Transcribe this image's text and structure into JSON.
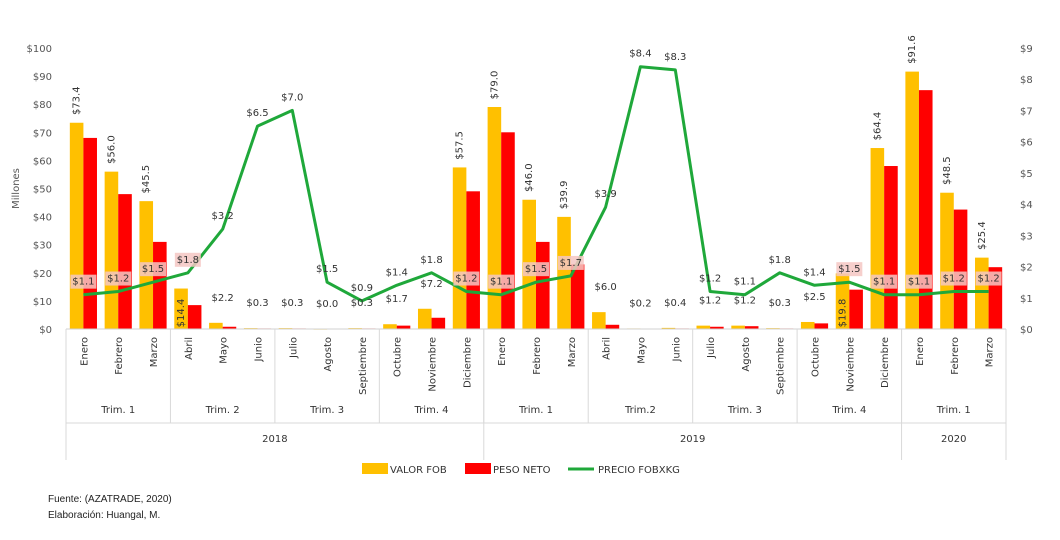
{
  "chart_data": {
    "type": "bar",
    "ylabel": "Millones",
    "ylim": [
      0,
      100
    ],
    "y2lim": [
      0,
      9
    ],
    "y_ticks": [
      "$0",
      "$10",
      "$20",
      "$30",
      "$40",
      "$50",
      "$60",
      "$70",
      "$80",
      "$90",
      "$100"
    ],
    "y2_ticks": [
      "$0",
      "$1",
      "$2",
      "$3",
      "$4",
      "$5",
      "$6",
      "$7",
      "$8",
      "$9"
    ],
    "categories": [
      "Enero",
      "Febrero",
      "Marzo",
      "Abril",
      "Mayo",
      "Junio",
      "Julio",
      "Agosto",
      "Septiembre",
      "Octubre",
      "Noviembre",
      "Diciembre",
      "Enero",
      "Febrero",
      "Marzo",
      "Abril",
      "Mayo",
      "Junio",
      "Julio",
      "Agosto",
      "Septiembre",
      "Octubre",
      "Noviembre",
      "Diciembre",
      "Enero",
      "Febrero",
      "Marzo"
    ],
    "quarters": [
      {
        "label": "Trim. 1",
        "start": 0,
        "end": 2
      },
      {
        "label": "Trim. 2",
        "start": 3,
        "end": 5
      },
      {
        "label": "Trim. 3",
        "start": 6,
        "end": 8
      },
      {
        "label": "Trim. 4",
        "start": 9,
        "end": 11
      },
      {
        "label": "Trim. 1",
        "start": 12,
        "end": 14
      },
      {
        "label": "Trim.2",
        "start": 15,
        "end": 17
      },
      {
        "label": "Trim. 3",
        "start": 18,
        "end": 20
      },
      {
        "label": "Trim. 4",
        "start": 21,
        "end": 23
      },
      {
        "label": "Trim. 1",
        "start": 24,
        "end": 26
      }
    ],
    "years": [
      {
        "label": "2018",
        "start": 0,
        "end": 11
      },
      {
        "label": "2019",
        "start": 12,
        "end": 23
      },
      {
        "label": "2020",
        "start": 24,
        "end": 26
      }
    ],
    "series": [
      {
        "name": "VALOR FOB",
        "axis": "left",
        "kind": "bar",
        "color": "#FFC000",
        "values": [
          73.4,
          56.0,
          45.5,
          14.4,
          2.2,
          0.3,
          0.3,
          0.0,
          0.3,
          1.7,
          7.2,
          57.5,
          79.0,
          46.0,
          39.9,
          6.0,
          0.2,
          0.4,
          1.2,
          1.2,
          0.3,
          2.5,
          19.8,
          64.4,
          91.6,
          48.5,
          25.4
        ],
        "labels": [
          "$73.4",
          "$56.0",
          "$45.5",
          "$14.4",
          "$2.2",
          "$0.3",
          "$0.3",
          "$0.0",
          "$0.3",
          "$1.7",
          "$7.2",
          "$57.5",
          "$79.0",
          "$46.0",
          "$39.9",
          "$6.0",
          "$0.2",
          "$0.4",
          "$1.2",
          "$1.2",
          "$0.3",
          "$2.5",
          "$19.8",
          "$64.4",
          "$91.6",
          "$48.5",
          "$25.4"
        ]
      },
      {
        "name": "PESO NETO",
        "axis": "left",
        "kind": "bar",
        "color": "#FF0000",
        "values": [
          68.0,
          48.0,
          31.0,
          8.5,
          0.8,
          0.2,
          0.2,
          0.1,
          0.2,
          1.2,
          4.0,
          49.0,
          70.0,
          31.0,
          23.0,
          1.5,
          0.1,
          0.2,
          0.8,
          1.0,
          0.2,
          2.0,
          14.0,
          58.0,
          85.0,
          42.5,
          22.0
        ]
      },
      {
        "name": "PRECIO FOBXKG",
        "axis": "right",
        "kind": "line",
        "color": "#1FA83A",
        "values": [
          1.1,
          1.2,
          1.5,
          1.8,
          3.2,
          6.5,
          7.0,
          1.5,
          0.9,
          1.4,
          1.8,
          1.2,
          1.1,
          1.5,
          1.7,
          3.9,
          8.4,
          8.3,
          1.2,
          1.1,
          1.8,
          1.4,
          1.5,
          1.1,
          1.1,
          1.2,
          1.2
        ],
        "labels": [
          "$1.1",
          "$1.2",
          "$1.5",
          "$1.8",
          "$3.2",
          "$6.5",
          "$7.0",
          "$1.5",
          "$0.9",
          "$1.4",
          "$1.8",
          "$1.2",
          "$1.1",
          "$1.5",
          "$1.7",
          "$3.9",
          "$8.4",
          "$8.3",
          "$1.2",
          "$1.1",
          "$1.8",
          "$1.4",
          "$1.5",
          "$1.1",
          "$1.1",
          "$1.2",
          "$1.2"
        ]
      }
    ],
    "legend_position": "bottom",
    "grid": false
  },
  "footer": {
    "source": "Fuente: (AZATRADE, 2020)",
    "author": "Elaboración: Huangal, M."
  }
}
